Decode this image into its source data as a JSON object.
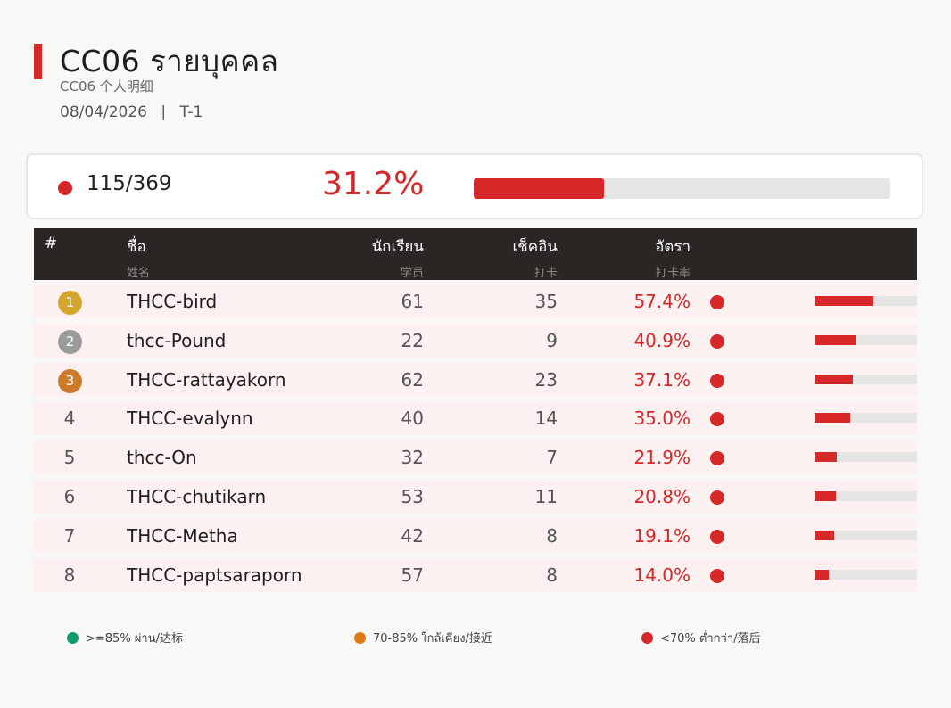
{
  "header": {
    "title": "CC06  รายบุคคล",
    "subtitle": "CC06  个人明细",
    "date": "08/04/2026",
    "separator": "|",
    "period": "T-1"
  },
  "summary": {
    "count": "115/369",
    "percent": "31.2%",
    "progress": 0.312,
    "status_color": "#d62828"
  },
  "table": {
    "columns": [
      {
        "label": "#",
        "sub": ""
      },
      {
        "label": "ชื่อ",
        "sub": "姓名"
      },
      {
        "label": "นักเรียน",
        "sub": "学员"
      },
      {
        "label": "เช็คอิน",
        "sub": "打卡"
      },
      {
        "label": "อัตรา",
        "sub": "打卡率"
      }
    ],
    "rows": [
      {
        "rank": "1",
        "name": "THCC-bird",
        "students": "61",
        "checkin": "35",
        "rate": "57.4%",
        "rate_value": 0.574,
        "medal": "gold"
      },
      {
        "rank": "2",
        "name": "thcc-Pound",
        "students": "22",
        "checkin": "9",
        "rate": "40.9%",
        "rate_value": 0.409,
        "medal": "silver"
      },
      {
        "rank": "3",
        "name": "THCC-rattayakorn",
        "students": "62",
        "checkin": "23",
        "rate": "37.1%",
        "rate_value": 0.371,
        "medal": "bronze"
      },
      {
        "rank": "4",
        "name": "THCC-evalynn",
        "students": "40",
        "checkin": "14",
        "rate": "35.0%",
        "rate_value": 0.35,
        "medal": ""
      },
      {
        "rank": "5",
        "name": "thcc-On",
        "students": "32",
        "checkin": "7",
        "rate": "21.9%",
        "rate_value": 0.219,
        "medal": ""
      },
      {
        "rank": "6",
        "name": "THCC-chutikarn",
        "students": "53",
        "checkin": "11",
        "rate": "20.8%",
        "rate_value": 0.208,
        "medal": ""
      },
      {
        "rank": "7",
        "name": "THCC-Metha",
        "students": "42",
        "checkin": "8",
        "rate": "19.1%",
        "rate_value": 0.191,
        "medal": ""
      },
      {
        "rank": "8",
        "name": "THCC-paptsaraporn",
        "students": "57",
        "checkin": "8",
        "rate": "14.0%",
        "rate_value": 0.14,
        "medal": ""
      }
    ]
  },
  "legend": [
    {
      "label": ">=85% ผ่าน/达标",
      "color": "#0e9a6c"
    },
    {
      "label": "70-85% ใกล้เคียง/接近",
      "color": "#e07b10"
    },
    {
      "label": "<70% ต่ำกว่า/落后",
      "color": "#d62828"
    }
  ],
  "colors": {
    "accent": "#d62828",
    "gold": "#d4a72c",
    "silver": "#9b9b9b",
    "bronze": "#cd7a2c"
  }
}
